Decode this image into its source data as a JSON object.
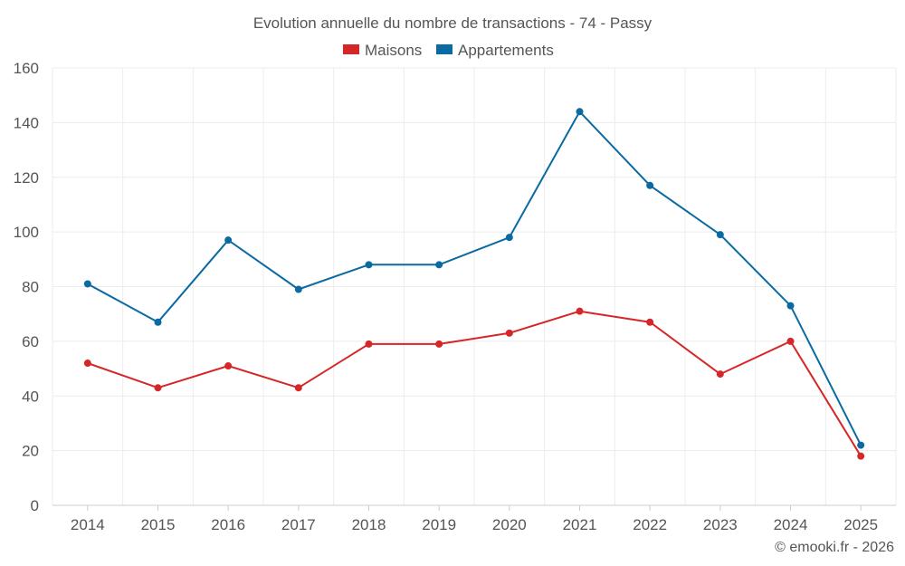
{
  "chart_data": {
    "type": "line",
    "title": "Evolution annuelle du nombre de transactions - 74 - Passy",
    "categories": [
      "2014",
      "2015",
      "2016",
      "2017",
      "2018",
      "2019",
      "2020",
      "2021",
      "2022",
      "2023",
      "2024",
      "2025"
    ],
    "series": [
      {
        "name": "Maisons",
        "color": "#d62728",
        "values": [
          52,
          43,
          51,
          43,
          59,
          59,
          63,
          71,
          67,
          48,
          60,
          18
        ]
      },
      {
        "name": "Appartements",
        "color": "#0a6aa1",
        "values": [
          81,
          67,
          97,
          79,
          88,
          88,
          98,
          144,
          117,
          99,
          73,
          22
        ]
      }
    ],
    "ylim": [
      0,
      160
    ],
    "yticks": [
      0,
      20,
      40,
      60,
      80,
      100,
      120,
      140,
      160
    ],
    "xlabel": "",
    "ylabel": "",
    "grid": true,
    "legend": "top-center"
  },
  "credit": "© emooki.fr - 2026"
}
